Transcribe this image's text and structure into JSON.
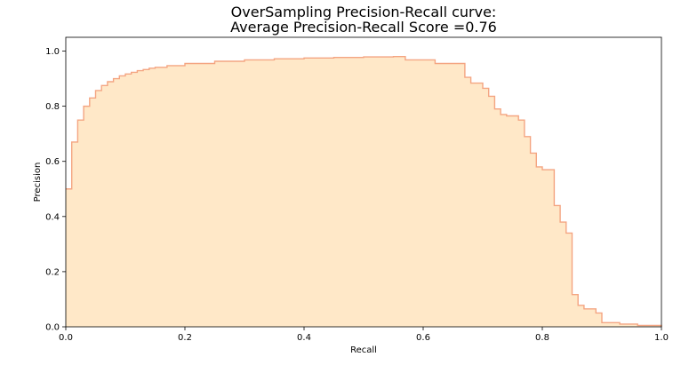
{
  "chart_data": {
    "type": "area",
    "title_line1": "OverSampling Precision-Recall curve:",
    "title_line2": " Average Precision-Recall Score =0.76",
    "xlabel": "Recall",
    "ylabel": "Precision",
    "xlim": [
      0.0,
      1.0
    ],
    "ylim": [
      0.0,
      1.05
    ],
    "xticks": [
      0.0,
      0.2,
      0.4,
      0.6,
      0.8,
      1.0
    ],
    "yticks": [
      0.0,
      0.2,
      0.4,
      0.6,
      0.8,
      1.0
    ],
    "xtick_labels": [
      "0.0",
      "0.2",
      "0.4",
      "0.6",
      "0.8",
      "1.0"
    ],
    "ytick_labels": [
      "0.0",
      "0.2",
      "0.4",
      "0.6",
      "0.8",
      "1.0"
    ],
    "grid": false,
    "step": "post",
    "fill_color": "#ffe8c8",
    "line_color": "#f4a582",
    "recall": [
      0.0,
      0.01,
      0.02,
      0.03,
      0.04,
      0.05,
      0.06,
      0.07,
      0.08,
      0.09,
      0.1,
      0.11,
      0.12,
      0.13,
      0.14,
      0.15,
      0.17,
      0.2,
      0.25,
      0.3,
      0.35,
      0.4,
      0.45,
      0.5,
      0.55,
      0.57,
      0.62,
      0.67,
      0.68,
      0.7,
      0.71,
      0.72,
      0.73,
      0.74,
      0.76,
      0.77,
      0.78,
      0.79,
      0.8,
      0.82,
      0.83,
      0.84,
      0.85,
      0.86,
      0.87,
      0.89,
      0.9,
      0.93,
      0.96,
      1.0
    ],
    "precision": [
      0.5,
      0.67,
      0.75,
      0.8,
      0.83,
      0.857,
      0.875,
      0.889,
      0.9,
      0.91,
      0.917,
      0.923,
      0.929,
      0.933,
      0.938,
      0.941,
      0.947,
      0.955,
      0.963,
      0.968,
      0.972,
      0.975,
      0.977,
      0.979,
      0.98,
      0.968,
      0.955,
      0.905,
      0.884,
      0.865,
      0.836,
      0.79,
      0.77,
      0.765,
      0.75,
      0.69,
      0.63,
      0.58,
      0.57,
      0.44,
      0.38,
      0.34,
      0.117,
      0.078,
      0.065,
      0.05,
      0.015,
      0.01,
      0.005,
      0.0
    ]
  }
}
